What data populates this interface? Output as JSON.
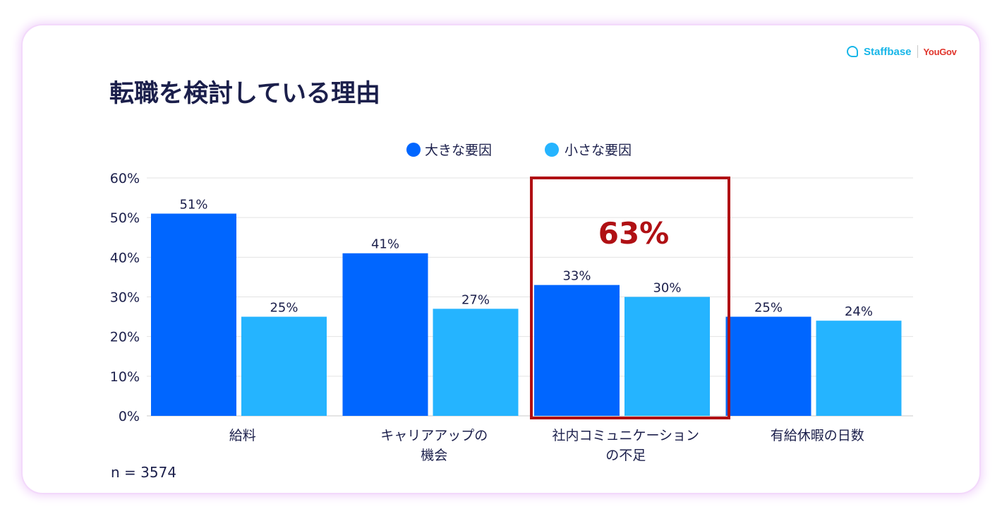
{
  "header": {
    "title": "転職を検討している理由",
    "logo": {
      "staffbase": "Staffbase",
      "yougov": "YouGov",
      "icon": "staffbase-logo-icon"
    }
  },
  "footnote": "n = 3574",
  "highlight": {
    "value": "63%",
    "category_index": 2,
    "color": "#b01014"
  },
  "chart_data": {
    "type": "bar",
    "title": "転職を検討している理由",
    "categories": [
      [
        "給料"
      ],
      [
        "キャリアアップの",
        "機会"
      ],
      [
        "社内コミュニケーション",
        "の不足"
      ],
      [
        "有給休暇の日数"
      ]
    ],
    "series": [
      {
        "name": "大きな要因",
        "color": "#0066ff",
        "values": [
          51,
          41,
          33,
          25
        ],
        "labels": [
          "51%",
          "41%",
          "33%",
          "25%"
        ]
      },
      {
        "name": "小さな要因",
        "color": "#25b4ff",
        "values": [
          25,
          27,
          30,
          24
        ],
        "labels": [
          "25%",
          "27%",
          "30%",
          "24%"
        ]
      }
    ],
    "ylim": [
      0,
      60
    ],
    "yticks": [
      0,
      10,
      20,
      30,
      40,
      50,
      60
    ],
    "ytick_labels": [
      "0%",
      "10%",
      "20%",
      "30%",
      "40%",
      "50%",
      "60%"
    ],
    "grid": true,
    "legend": "top-center"
  }
}
